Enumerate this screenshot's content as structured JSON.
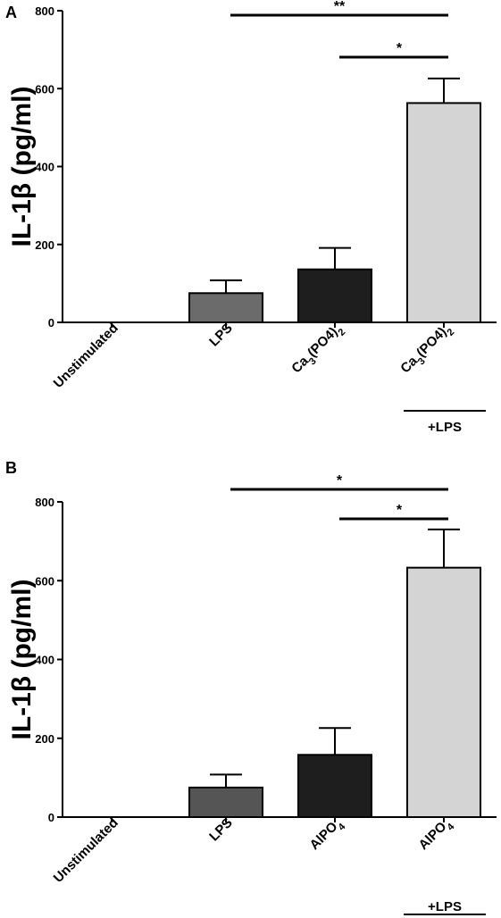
{
  "chart_data": [
    {
      "type": "bar",
      "panel": "A",
      "ylabel": "IL-1β (pg/ml)",
      "ylim": [
        0,
        800
      ],
      "yticks": [
        "0",
        "200",
        "400",
        "600",
        "800"
      ],
      "categories": [
        {
          "label": "Unstimulated",
          "base": "Unstimulated",
          "sub": ""
        },
        {
          "label": "LPS",
          "base": "LPS",
          "sub": ""
        },
        {
          "label": "Ca3(PO4)2",
          "base": "Ca",
          "sub": "3",
          "mid": "(PO4)",
          "sub2": "2"
        },
        {
          "label": "Ca3(PO4)2",
          "base": "Ca",
          "sub": "3",
          "mid": "(PO4)",
          "sub2": "2"
        }
      ],
      "values": [
        0,
        75,
        136,
        563
      ],
      "errors": [
        0,
        33,
        55,
        63
      ],
      "colors": [
        "#ffffff",
        "#6b6b6b",
        "#1e1e1e",
        "#d4d4d4"
      ],
      "bracket_label": "+LPS",
      "significance": [
        {
          "from": 1,
          "to": 3,
          "label": "**"
        },
        {
          "from": 2,
          "to": 3,
          "label": "*"
        }
      ]
    },
    {
      "type": "bar",
      "panel": "B",
      "ylabel": "IL-1β (pg/ml)",
      "ylim": [
        0,
        800
      ],
      "yticks": [
        "0",
        "200",
        "400",
        "600",
        "800"
      ],
      "categories": [
        {
          "label": "Unstimulated",
          "base": "Unstimulated",
          "sub": ""
        },
        {
          "label": "LPS",
          "base": "LPS",
          "sub": ""
        },
        {
          "label": "AlPO4",
          "base": "AlPO",
          "sub": "4"
        },
        {
          "label": "AlPO4",
          "base": "AlPO",
          "sub": "4"
        }
      ],
      "values": [
        0,
        75,
        158,
        633
      ],
      "errors": [
        0,
        33,
        68,
        97
      ],
      "colors": [
        "#ffffff",
        "#555555",
        "#1e1e1e",
        "#d4d4d4"
      ],
      "bracket_label": "+LPS",
      "significance": [
        {
          "from": 1,
          "to": 3,
          "label": "*"
        },
        {
          "from": 2,
          "to": 3,
          "label": "*"
        }
      ]
    }
  ]
}
